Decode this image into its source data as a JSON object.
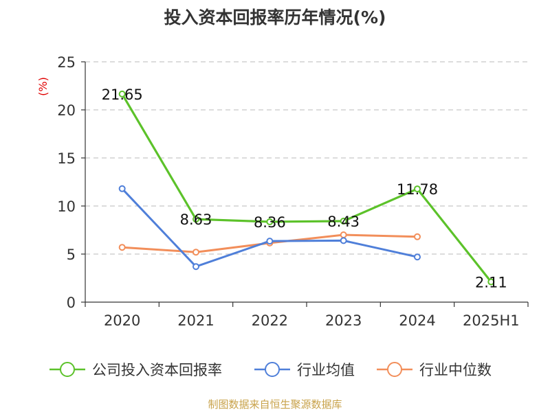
{
  "title": "投入资本回报率历年情况(%)",
  "source": "制图数据来自恒生聚源数据库",
  "colors": {
    "company": "#5cc22a",
    "industry_avg": "#4f7fd9",
    "industry_median": "#f28e5a",
    "unit_label": "#e00000",
    "grid": "#c8c8c8",
    "axis": "#333333"
  },
  "chart_data": {
    "type": "line",
    "title": "投入资本回报率历年情况(%)",
    "ylabel": "(%)",
    "xlabel": "",
    "ylim": [
      0,
      25
    ],
    "yticks": [
      0,
      5,
      10,
      15,
      20,
      25
    ],
    "grid": true,
    "legend_position": "bottom",
    "categories": [
      "2020",
      "2021",
      "2022",
      "2023",
      "2024",
      "2025H1"
    ],
    "series": [
      {
        "name": "公司投入资本回报率",
        "values": [
          21.65,
          8.63,
          8.36,
          8.43,
          11.78,
          2.11
        ],
        "labels": [
          "21.65",
          "8.63",
          "8.36",
          "8.43",
          "11.78",
          "2.11"
        ]
      },
      {
        "name": "行业均值",
        "values": [
          11.8,
          3.7,
          6.35,
          6.4,
          4.7,
          null
        ]
      },
      {
        "name": "行业中位数",
        "values": [
          5.7,
          5.2,
          6.15,
          7.0,
          6.8,
          null
        ]
      }
    ]
  }
}
